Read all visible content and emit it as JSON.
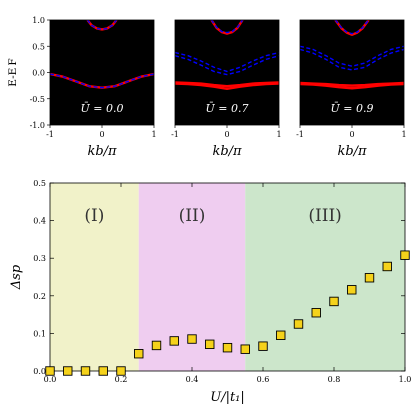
{
  "chart_data": [
    {
      "type": "line",
      "title": "",
      "xlabel": "kb/π",
      "ylabel": "E-E_F",
      "xlim": [
        -1,
        1
      ],
      "ylim": [
        -1.0,
        1.0
      ],
      "xticks": [
        "-1",
        "0",
        "1"
      ],
      "yticks": [
        "-1.0",
        "-0.5",
        "0.0",
        "0.5",
        "1.0"
      ],
      "background": "#000000",
      "panels": [
        {
          "annotation": "Ū = 0.0",
          "series": [
            {
              "style": "solid",
              "color": "#ff0000",
              "x": [
                -1,
                -0.75,
                -0.5,
                -0.25,
                0,
                0.25,
                0.5,
                0.75,
                1
              ],
              "y": [
                -0.03,
                -0.08,
                -0.17,
                -0.26,
                -0.29,
                -0.26,
                -0.17,
                -0.08,
                -0.03
              ]
            },
            {
              "style": "dashed",
              "color": "#0000ff",
              "x": [
                -1,
                -0.75,
                -0.5,
                -0.25,
                0,
                0.25,
                0.5,
                0.75,
                1
              ],
              "y": [
                -0.03,
                -0.08,
                -0.17,
                -0.26,
                -0.29,
                -0.26,
                -0.17,
                -0.08,
                -0.03
              ]
            },
            {
              "style": "solid",
              "color": "#ff0000",
              "x": [
                -0.28,
                -0.2,
                -0.1,
                0,
                0.1,
                0.2,
                0.28
              ],
              "y": [
                1.0,
                0.9,
                0.84,
                0.82,
                0.84,
                0.9,
                1.0
              ]
            },
            {
              "style": "dashed",
              "color": "#0000ff",
              "x": [
                -0.28,
                -0.2,
                -0.1,
                0,
                0.1,
                0.2,
                0.28
              ],
              "y": [
                1.0,
                0.9,
                0.84,
                0.82,
                0.84,
                0.9,
                1.0
              ]
            }
          ]
        },
        {
          "annotation": "Ū = 0.7",
          "series": [
            {
              "style": "solid",
              "color": "#ff0000",
              "x": [
                -1,
                -0.75,
                -0.5,
                -0.25,
                0,
                0.25,
                0.5,
                0.75,
                1
              ],
              "y": [
                -0.19,
                -0.2,
                -0.21,
                -0.24,
                -0.26,
                -0.24,
                -0.21,
                -0.2,
                -0.19
              ]
            },
            {
              "style": "solid",
              "color": "#ff0000",
              "x": [
                -1,
                -0.75,
                -0.5,
                -0.25,
                0,
                0.25,
                0.5,
                0.75,
                1
              ],
              "y": [
                -0.21,
                -0.22,
                -0.24,
                -0.27,
                -0.31,
                -0.27,
                -0.24,
                -0.22,
                -0.21
              ]
            },
            {
              "style": "dashed",
              "color": "#0000ff",
              "x": [
                -1,
                -0.75,
                -0.5,
                -0.25,
                0,
                0.25,
                0.5,
                0.75,
                1
              ],
              "y": [
                0.38,
                0.32,
                0.22,
                0.1,
                0.02,
                0.1,
                0.22,
                0.32,
                0.38
              ]
            },
            {
              "style": "dashed",
              "color": "#0000ff",
              "x": [
                -1,
                -0.75,
                -0.5,
                -0.25,
                0,
                0.25,
                0.5,
                0.75,
                1
              ],
              "y": [
                0.32,
                0.25,
                0.14,
                0.02,
                -0.04,
                0.02,
                0.14,
                0.25,
                0.32
              ]
            },
            {
              "style": "solid",
              "color": "#ff0000",
              "x": [
                -0.3,
                -0.2,
                -0.1,
                0,
                0.1,
                0.2,
                0.3
              ],
              "y": [
                1.0,
                0.85,
                0.77,
                0.74,
                0.77,
                0.85,
                1.0
              ]
            },
            {
              "style": "dashed",
              "color": "#0000ff",
              "x": [
                -0.3,
                -0.2,
                -0.1,
                0,
                0.1,
                0.2,
                0.3
              ],
              "y": [
                1.0,
                0.86,
                0.78,
                0.76,
                0.78,
                0.86,
                1.0
              ]
            }
          ]
        },
        {
          "annotation": "Ū = 0.9",
          "series": [
            {
              "style": "solid",
              "color": "#ff0000",
              "x": [
                -1,
                -0.75,
                -0.5,
                -0.25,
                0,
                0.25,
                0.5,
                0.75,
                1
              ],
              "y": [
                -0.2,
                -0.21,
                -0.22,
                -0.24,
                -0.25,
                -0.24,
                -0.22,
                -0.21,
                -0.2
              ]
            },
            {
              "style": "solid",
              "color": "#ff0000",
              "x": [
                -1,
                -0.75,
                -0.5,
                -0.25,
                0,
                0.25,
                0.5,
                0.75,
                1
              ],
              "y": [
                -0.22,
                -0.23,
                -0.25,
                -0.28,
                -0.3,
                -0.28,
                -0.25,
                -0.23,
                -0.22
              ]
            },
            {
              "style": "dashed",
              "color": "#0000ff",
              "x": [
                -1,
                -0.75,
                -0.5,
                -0.25,
                0,
                0.25,
                0.5,
                0.75,
                1
              ],
              "y": [
                0.5,
                0.44,
                0.32,
                0.18,
                0.12,
                0.18,
                0.32,
                0.44,
                0.5
              ]
            },
            {
              "style": "dashed",
              "color": "#0000ff",
              "x": [
                -1,
                -0.75,
                -0.5,
                -0.25,
                0,
                0.25,
                0.5,
                0.75,
                1
              ],
              "y": [
                0.44,
                0.37,
                0.25,
                0.1,
                0.05,
                0.1,
                0.25,
                0.37,
                0.44
              ]
            },
            {
              "style": "solid",
              "color": "#ff0000",
              "x": [
                -0.32,
                -0.2,
                -0.1,
                0,
                0.1,
                0.2,
                0.32
              ],
              "y": [
                1.0,
                0.84,
                0.76,
                0.72,
                0.76,
                0.84,
                1.0
              ]
            },
            {
              "style": "dashed",
              "color": "#0000ff",
              "x": [
                -0.32,
                -0.2,
                -0.1,
                0,
                0.1,
                0.2,
                0.32
              ],
              "y": [
                1.0,
                0.85,
                0.77,
                0.74,
                0.77,
                0.85,
                1.0
              ]
            }
          ]
        }
      ]
    },
    {
      "type": "scatter",
      "title": "",
      "xlabel": "U/|t_1|",
      "ylabel": "Δsp",
      "xlim": [
        0,
        1
      ],
      "ylim": [
        0,
        0.5
      ],
      "xticks": [
        "0.0",
        "0.2",
        "0.4",
        "0.6",
        "0.8",
        "1.0"
      ],
      "yticks": [
        "0.0",
        "0.1",
        "0.2",
        "0.3",
        "0.4",
        "0.5"
      ],
      "marker": {
        "shape": "square",
        "fill": "#f5d21b",
        "stroke": "#000000"
      },
      "regions": [
        {
          "label": "(I)",
          "x0": 0,
          "x1": 0.25,
          "color": "#f1f2c9"
        },
        {
          "label": "(II)",
          "x0": 0.25,
          "x1": 0.55,
          "color": "#efcdf0"
        },
        {
          "label": "(III)",
          "x0": 0.55,
          "x1": 1.0,
          "color": "#cce6cb"
        }
      ],
      "x": [
        0.0,
        0.05,
        0.1,
        0.15,
        0.2,
        0.25,
        0.3,
        0.35,
        0.4,
        0.45,
        0.5,
        0.55,
        0.6,
        0.65,
        0.7,
        0.75,
        0.8,
        0.85,
        0.9,
        0.95,
        1.0
      ],
      "y": [
        0.0,
        0.0,
        0.0,
        0.0,
        0.0,
        0.046,
        0.068,
        0.08,
        0.085,
        0.071,
        0.062,
        0.058,
        0.066,
        0.095,
        0.125,
        0.155,
        0.185,
        0.216,
        0.248,
        0.278,
        0.308
      ]
    }
  ]
}
